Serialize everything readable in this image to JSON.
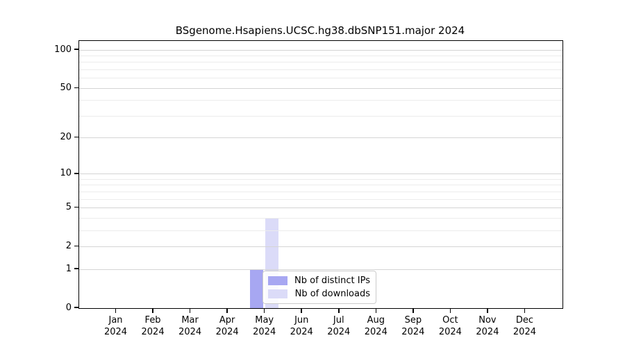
{
  "chart_data": {
    "type": "bar",
    "title": "BSgenome.Hsapiens.UCSC.hg38.dbSNP151.major 2024",
    "x_categories": [
      "Jan",
      "Feb",
      "Mar",
      "Apr",
      "May",
      "Jun",
      "Jul",
      "Aug",
      "Sep",
      "Oct",
      "Nov",
      "Dec"
    ],
    "x_year": "2024",
    "series": [
      {
        "name": "Nb of distinct IPs",
        "color": "#a7a7f2",
        "values": [
          0,
          0,
          0,
          0,
          1,
          0,
          0,
          0,
          0,
          0,
          0,
          0
        ]
      },
      {
        "name": "Nb of downloads",
        "color": "#dbdbf8",
        "values": [
          0,
          0,
          0,
          0,
          4,
          0,
          0,
          0,
          0,
          0,
          0,
          0
        ]
      }
    ],
    "y_scale": "log1p",
    "y_major_ticks": [
      0,
      1,
      2,
      5,
      10,
      20,
      50,
      100
    ],
    "y_minor_ticks": [
      3,
      4,
      6,
      7,
      8,
      9,
      30,
      40,
      60,
      70,
      80,
      90
    ],
    "ylim": [
      0,
      118
    ],
    "grid": true,
    "legend_position": "lower-center"
  },
  "colors": {
    "grid_major": "#d4d4d4",
    "grid_minor": "#ececec",
    "axis": "#000000",
    "background": "#ffffff"
  }
}
